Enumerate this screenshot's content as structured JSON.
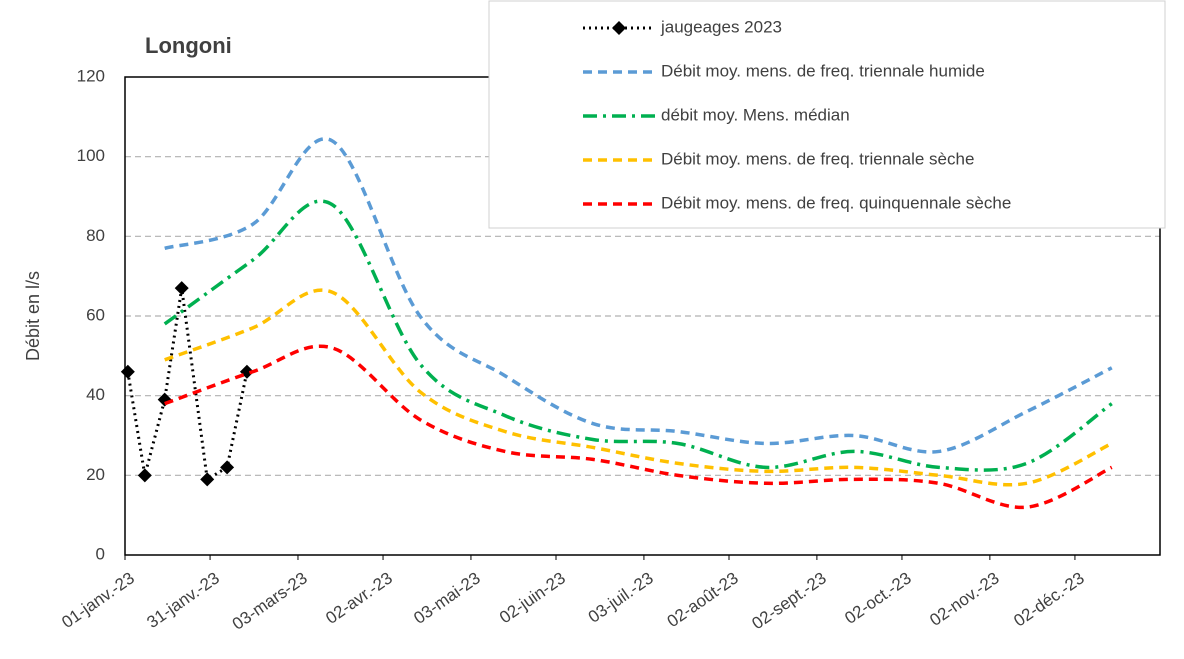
{
  "chart_data": {
    "type": "line",
    "title": "Longoni",
    "y_label": "Débit en l/s",
    "xlim": [
      "2023-01-01",
      "2024-01-01"
    ],
    "xticks": [
      {
        "value": "2023-01-01",
        "label": "01-janv.-23"
      },
      {
        "value": "2023-01-31",
        "label": "31-janv.-23"
      },
      {
        "value": "2023-03-03",
        "label": "03-mars-23"
      },
      {
        "value": "2023-04-02",
        "label": "02-avr.-23"
      },
      {
        "value": "2023-05-03",
        "label": "03-mai-23"
      },
      {
        "value": "2023-06-02",
        "label": "02-juin-23"
      },
      {
        "value": "2023-07-03",
        "label": "03-juil.-23"
      },
      {
        "value": "2023-08-02",
        "label": "02-août-23"
      },
      {
        "value": "2023-09-02",
        "label": "02-sept.-23"
      },
      {
        "value": "2023-10-02",
        "label": "02-oct.-23"
      },
      {
        "value": "2023-11-02",
        "label": "02-nov.-23"
      },
      {
        "value": "2023-12-02",
        "label": "02-déc.-23"
      }
    ],
    "ylim": [
      0,
      120
    ],
    "yticks": [
      0,
      20,
      40,
      60,
      80,
      100,
      120
    ],
    "grid": true,
    "legend": "top-right",
    "series": [
      {
        "name": "jaugeages 2023",
        "color": "#000000",
        "style": "dotted",
        "marker": "diamond",
        "x": [
          "2023-01-02",
          "2023-01-08",
          "2023-01-15",
          "2023-01-21",
          "2023-01-30",
          "2023-02-06",
          "2023-02-13"
        ],
        "values": [
          46,
          20,
          39,
          67,
          19,
          22,
          46
        ]
      },
      {
        "name": "Débit moy. mens. de freq. triennale humide",
        "color": "#5b9bd5",
        "style": "dashed",
        "x": [
          "2023-01-15",
          "2023-02-15",
          "2023-03-15",
          "2023-04-15",
          "2023-05-15",
          "2023-06-15",
          "2023-07-15",
          "2023-08-15",
          "2023-09-15",
          "2023-10-15",
          "2023-11-15",
          "2023-12-15"
        ],
        "values": [
          77,
          83,
          104,
          60,
          45,
          33,
          31,
          28,
          30,
          26,
          36,
          47
        ]
      },
      {
        "name": "débit moy. Mens. médian",
        "color": "#00b050",
        "style": "dashdot",
        "x": [
          "2023-01-15",
          "2023-02-15",
          "2023-03-15",
          "2023-04-15",
          "2023-05-15",
          "2023-06-15",
          "2023-07-15",
          "2023-08-15",
          "2023-09-15",
          "2023-10-15",
          "2023-11-15",
          "2023-12-15"
        ],
        "values": [
          58,
          74,
          88,
          48,
          35,
          29,
          28,
          22,
          26,
          22,
          23,
          38
        ]
      },
      {
        "name": "Débit moy. mens. de freq. triennale sèche",
        "color": "#ffc000",
        "style": "dashed",
        "x": [
          "2023-01-15",
          "2023-02-15",
          "2023-03-15",
          "2023-04-15",
          "2023-05-15",
          "2023-06-15",
          "2023-07-15",
          "2023-08-15",
          "2023-09-15",
          "2023-10-15",
          "2023-11-15",
          "2023-12-15"
        ],
        "values": [
          49,
          57,
          66,
          41,
          31,
          27,
          23,
          21,
          22,
          20,
          18,
          28
        ]
      },
      {
        "name": "Débit moy. mens. de freq. quinquennale sèche",
        "color": "#ff0000",
        "style": "dashed",
        "x": [
          "2023-01-15",
          "2023-02-15",
          "2023-03-15",
          "2023-04-15",
          "2023-05-15",
          "2023-06-15",
          "2023-07-15",
          "2023-08-15",
          "2023-09-15",
          "2023-10-15",
          "2023-11-15",
          "2023-12-15"
        ],
        "values": [
          38,
          46,
          52,
          34,
          26,
          24,
          20,
          18,
          19,
          18,
          12,
          22
        ]
      }
    ]
  }
}
